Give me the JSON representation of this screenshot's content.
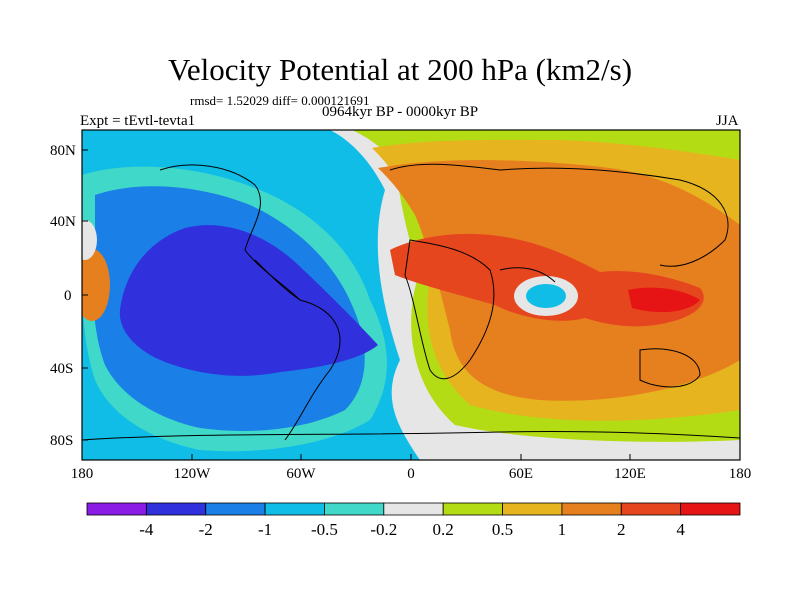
{
  "title": "Velocity Potential at 200 hPa (km2/s)",
  "stats": "rmsd= 1.52029 diff= 0.000121691",
  "period": "0964kyr BP - 0000kyr BP",
  "experiment": "Expt = tEvtl-tevta1",
  "season": "JJA",
  "map": {
    "y_ticks": [
      "80N",
      "40N",
      "0",
      "40S",
      "80S"
    ],
    "x_ticks": [
      "180",
      "120W",
      "60W",
      "0",
      "60E",
      "120E",
      "180"
    ]
  },
  "colorbar": {
    "labels": [
      "-4",
      "-2",
      "-1",
      "-0.5",
      "-0.2",
      "0.2",
      "0.5",
      "1",
      "2",
      "4"
    ],
    "colors": [
      "#8a1ce6",
      "#3030dc",
      "#1a7fe6",
      "#10bde6",
      "#40d8c8",
      "#e6e6e6",
      "#b4dc14",
      "#e6b41e",
      "#e6801e",
      "#e6461e",
      "#e61414"
    ]
  }
}
